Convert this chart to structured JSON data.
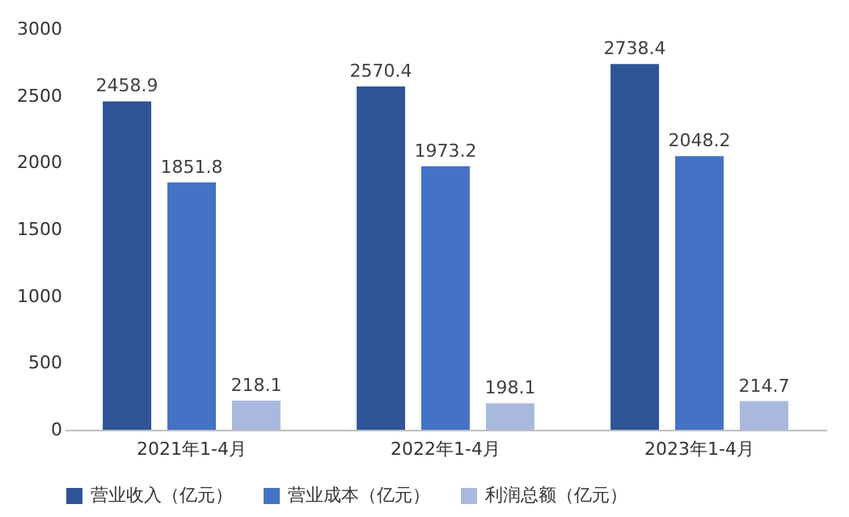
{
  "chart_data": {
    "type": "bar",
    "categories": [
      "2021年1-4月",
      "2022年1-4月",
      "2023年1-4月"
    ],
    "series": [
      {
        "name": "营业收入（亿元）",
        "color": "#2f5597",
        "values": [
          2458.9,
          2570.4,
          2738.4
        ]
      },
      {
        "name": "营业成本（亿元）",
        "color": "#4472c4",
        "values": [
          1851.8,
          1973.2,
          2048.2
        ]
      },
      {
        "name": "利润总额（亿元）",
        "color": "#a9b8de",
        "values": [
          218.1,
          198.1,
          214.7
        ]
      }
    ],
    "ylim": [
      0,
      3000
    ],
    "yticks": [
      0,
      500,
      1000,
      1500,
      2000,
      2500,
      3000
    ],
    "grid": false,
    "legend": "bottom",
    "data_labels": true
  }
}
